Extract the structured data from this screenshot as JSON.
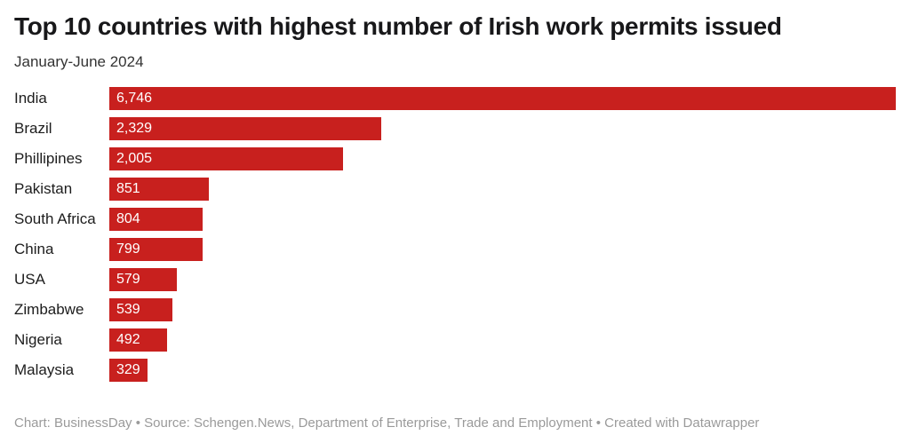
{
  "chart_data": {
    "type": "bar",
    "orientation": "horizontal",
    "title": "Top 10 countries with highest number of Irish work permits issued",
    "subtitle": "January-June 2024",
    "categories": [
      "India",
      "Brazil",
      "Phillipines",
      "Pakistan",
      "South Africa",
      "China",
      "USA",
      "Zimbabwe",
      "Nigeria",
      "Malaysia"
    ],
    "values": [
      6746,
      2329,
      2005,
      851,
      804,
      799,
      579,
      539,
      492,
      329
    ],
    "value_labels": [
      "6,746",
      "2,329",
      "2,005",
      "851",
      "804",
      "799",
      "579",
      "539",
      "492",
      "329"
    ],
    "xlim": [
      0,
      6746
    ],
    "grid": false,
    "legend": "none",
    "bar_color": "#c8201e",
    "value_label_color": "#ffffff",
    "footer": "Chart: BusinessDay • Source: Schengen.News, Department of Enterprise, Trade and Employment • Created with Datawrapper"
  }
}
